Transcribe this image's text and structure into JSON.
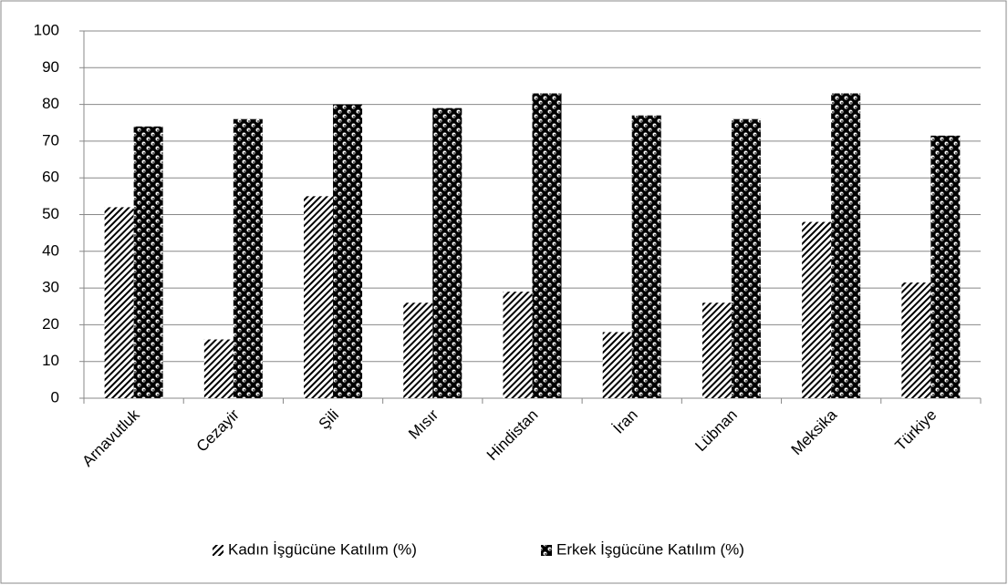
{
  "chart_data": {
    "type": "bar",
    "categories": [
      "Arnavutluk",
      "Cezayir",
      "Şili",
      "Mısır",
      "Hindistan",
      "İran",
      "Lübnan",
      "Meksika",
      "Türkiye"
    ],
    "series": [
      {
        "name": "Kadın İşgücüne Katılım (%)",
        "color": "#000000",
        "values": [
          52,
          16,
          55,
          26,
          29,
          18,
          26,
          48,
          31.5
        ]
      },
      {
        "name": "Erkek İşgücüne Katılım (%)",
        "color": "#000000",
        "values": [
          74,
          76,
          80,
          79,
          83,
          77,
          76,
          83,
          71.5
        ]
      }
    ],
    "ylim": [
      0,
      100
    ],
    "yticks": [
      0,
      10,
      20,
      30,
      40,
      50,
      60,
      70,
      80,
      90,
      100
    ],
    "grid": true,
    "legend": "bottom"
  }
}
